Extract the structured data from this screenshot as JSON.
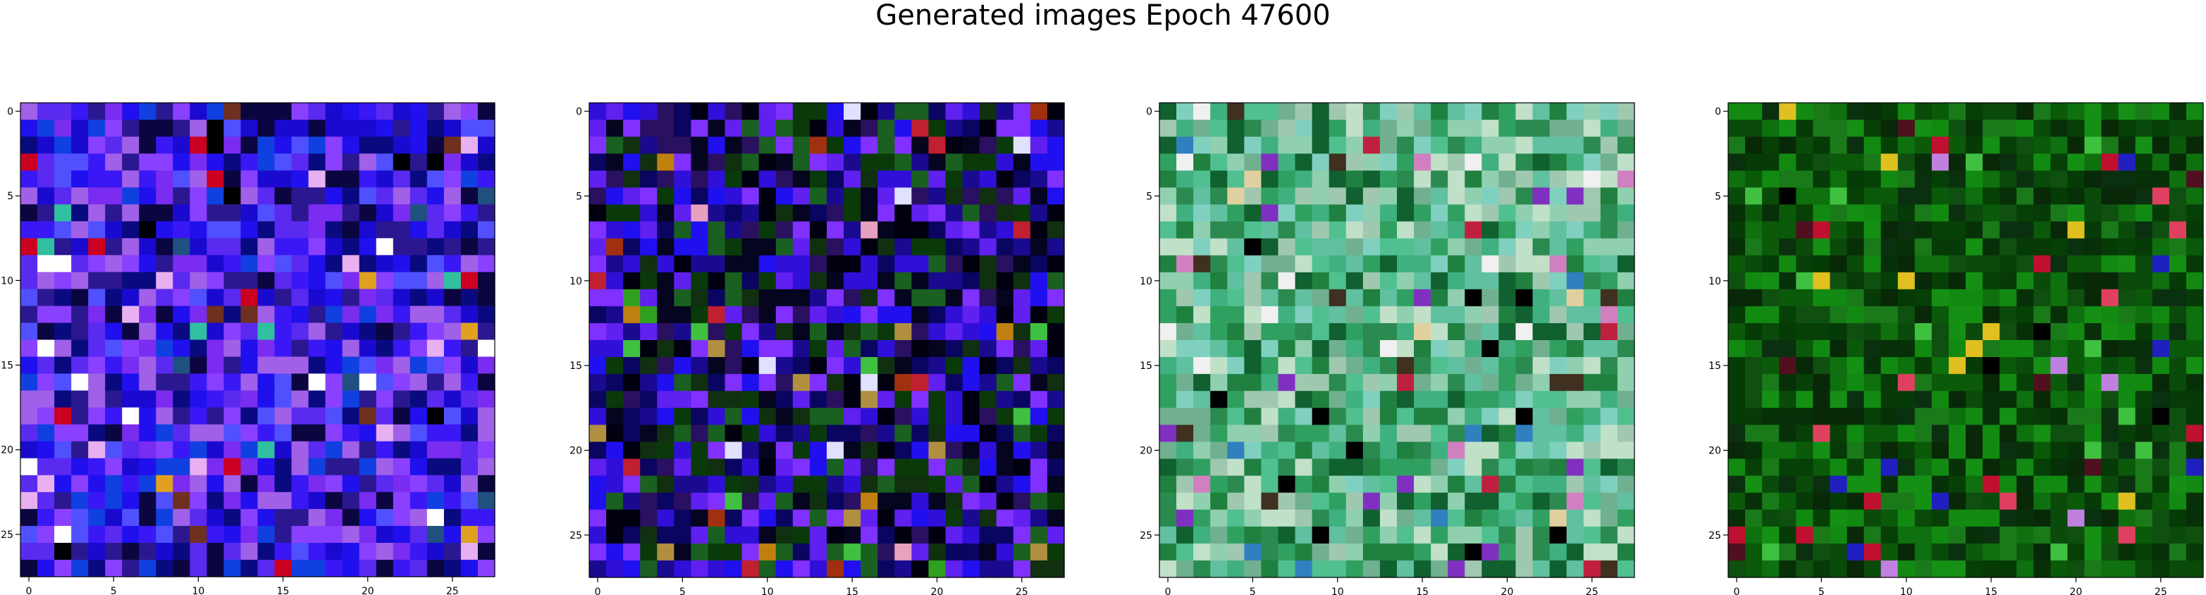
{
  "figure": {
    "title": "Generated images Epoch 47600"
  },
  "chart_data": [
    {
      "type": "heatmap",
      "description_note": "",
      "grid_size": [
        28,
        28
      ],
      "xlim": [
        -0.5,
        27.5
      ],
      "ylim": [
        27.5,
        -0.5
      ],
      "xticks": [
        "0",
        "5",
        "10",
        "15",
        "20",
        "25"
      ],
      "yticks": [
        "0",
        "5",
        "10",
        "15",
        "20",
        "25"
      ],
      "palette": [
        "#2010ee",
        "#1a0ad0",
        "#3a18f5",
        "#5a2af0",
        "#7a2cf0",
        "#1040e0",
        "#2b1890",
        "#0b0640",
        "#8a40ff",
        "#a060e8",
        "#5050ff",
        "#0a0a80"
      ],
      "accent": [
        "#cc0020",
        "#e0a020",
        "#30c0a0",
        "#ffffff",
        "#e8b0f0",
        "#205080",
        "#703020",
        "#000000"
      ],
      "seed": 17
    },
    {
      "type": "heatmap",
      "grid_size": [
        28,
        28
      ],
      "xlim": [
        -0.5,
        27.5
      ],
      "ylim": [
        27.5,
        -0.5
      ],
      "xticks": [
        "0",
        "5",
        "10",
        "15",
        "20",
        "25"
      ],
      "yticks": [
        "0",
        "5",
        "10",
        "15",
        "20",
        "25"
      ],
      "palette": [
        "#2010f0",
        "#3010d8",
        "#6020f0",
        "#8030ff",
        "#1a0a90",
        "#0a0560",
        "#050520",
        "#103010",
        "#1a6020",
        "#0a3a0a",
        "#000010",
        "#2a1060"
      ],
      "accent": [
        "#e8a0c0",
        "#c08010",
        "#a03010",
        "#30a020",
        "#e0e0ff",
        "#b09040",
        "#c02030",
        "#40c040"
      ],
      "seed": 42
    },
    {
      "type": "heatmap",
      "grid_size": [
        28,
        28
      ],
      "xlim": [
        -0.5,
        27.5
      ],
      "ylim": [
        27.5,
        -0.5
      ],
      "xticks": [
        "0",
        "5",
        "10",
        "15",
        "20",
        "25"
      ],
      "yticks": [
        "0",
        "5",
        "10",
        "15",
        "20",
        "25"
      ],
      "palette": [
        "#40b080",
        "#60c0a0",
        "#90d0b0",
        "#30a060",
        "#2a8a50",
        "#a0c8b0",
        "#50c090",
        "#208040",
        "#c0e0c8",
        "#70b090",
        "#106030",
        "#80d0c0"
      ],
      "accent": [
        "#c02040",
        "#000000",
        "#8030c0",
        "#e0d0a0",
        "#d080c0",
        "#3080c0",
        "#f0f0f0",
        "#403020"
      ],
      "seed": 7
    },
    {
      "type": "heatmap",
      "grid_size": [
        28,
        28
      ],
      "xlim": [
        -0.5,
        27.5
      ],
      "ylim": [
        27.5,
        -0.5
      ],
      "xticks": [
        "0",
        "5",
        "10",
        "15",
        "20",
        "25"
      ],
      "yticks": [
        "0",
        "5",
        "10",
        "15",
        "20",
        "25"
      ],
      "palette": [
        "#0a5a0a",
        "#0e700e",
        "#064006",
        "#128a12",
        "#0a4a0a",
        "#063a06",
        "#1a7a1a",
        "#0b3010",
        "#0f5010",
        "#073008",
        "#159015",
        "#082808"
      ],
      "accent": [
        "#c01030",
        "#2020c0",
        "#e0c020",
        "#000000",
        "#c080e0",
        "#e04060",
        "#40c040",
        "#501020"
      ],
      "seed": 99
    }
  ]
}
